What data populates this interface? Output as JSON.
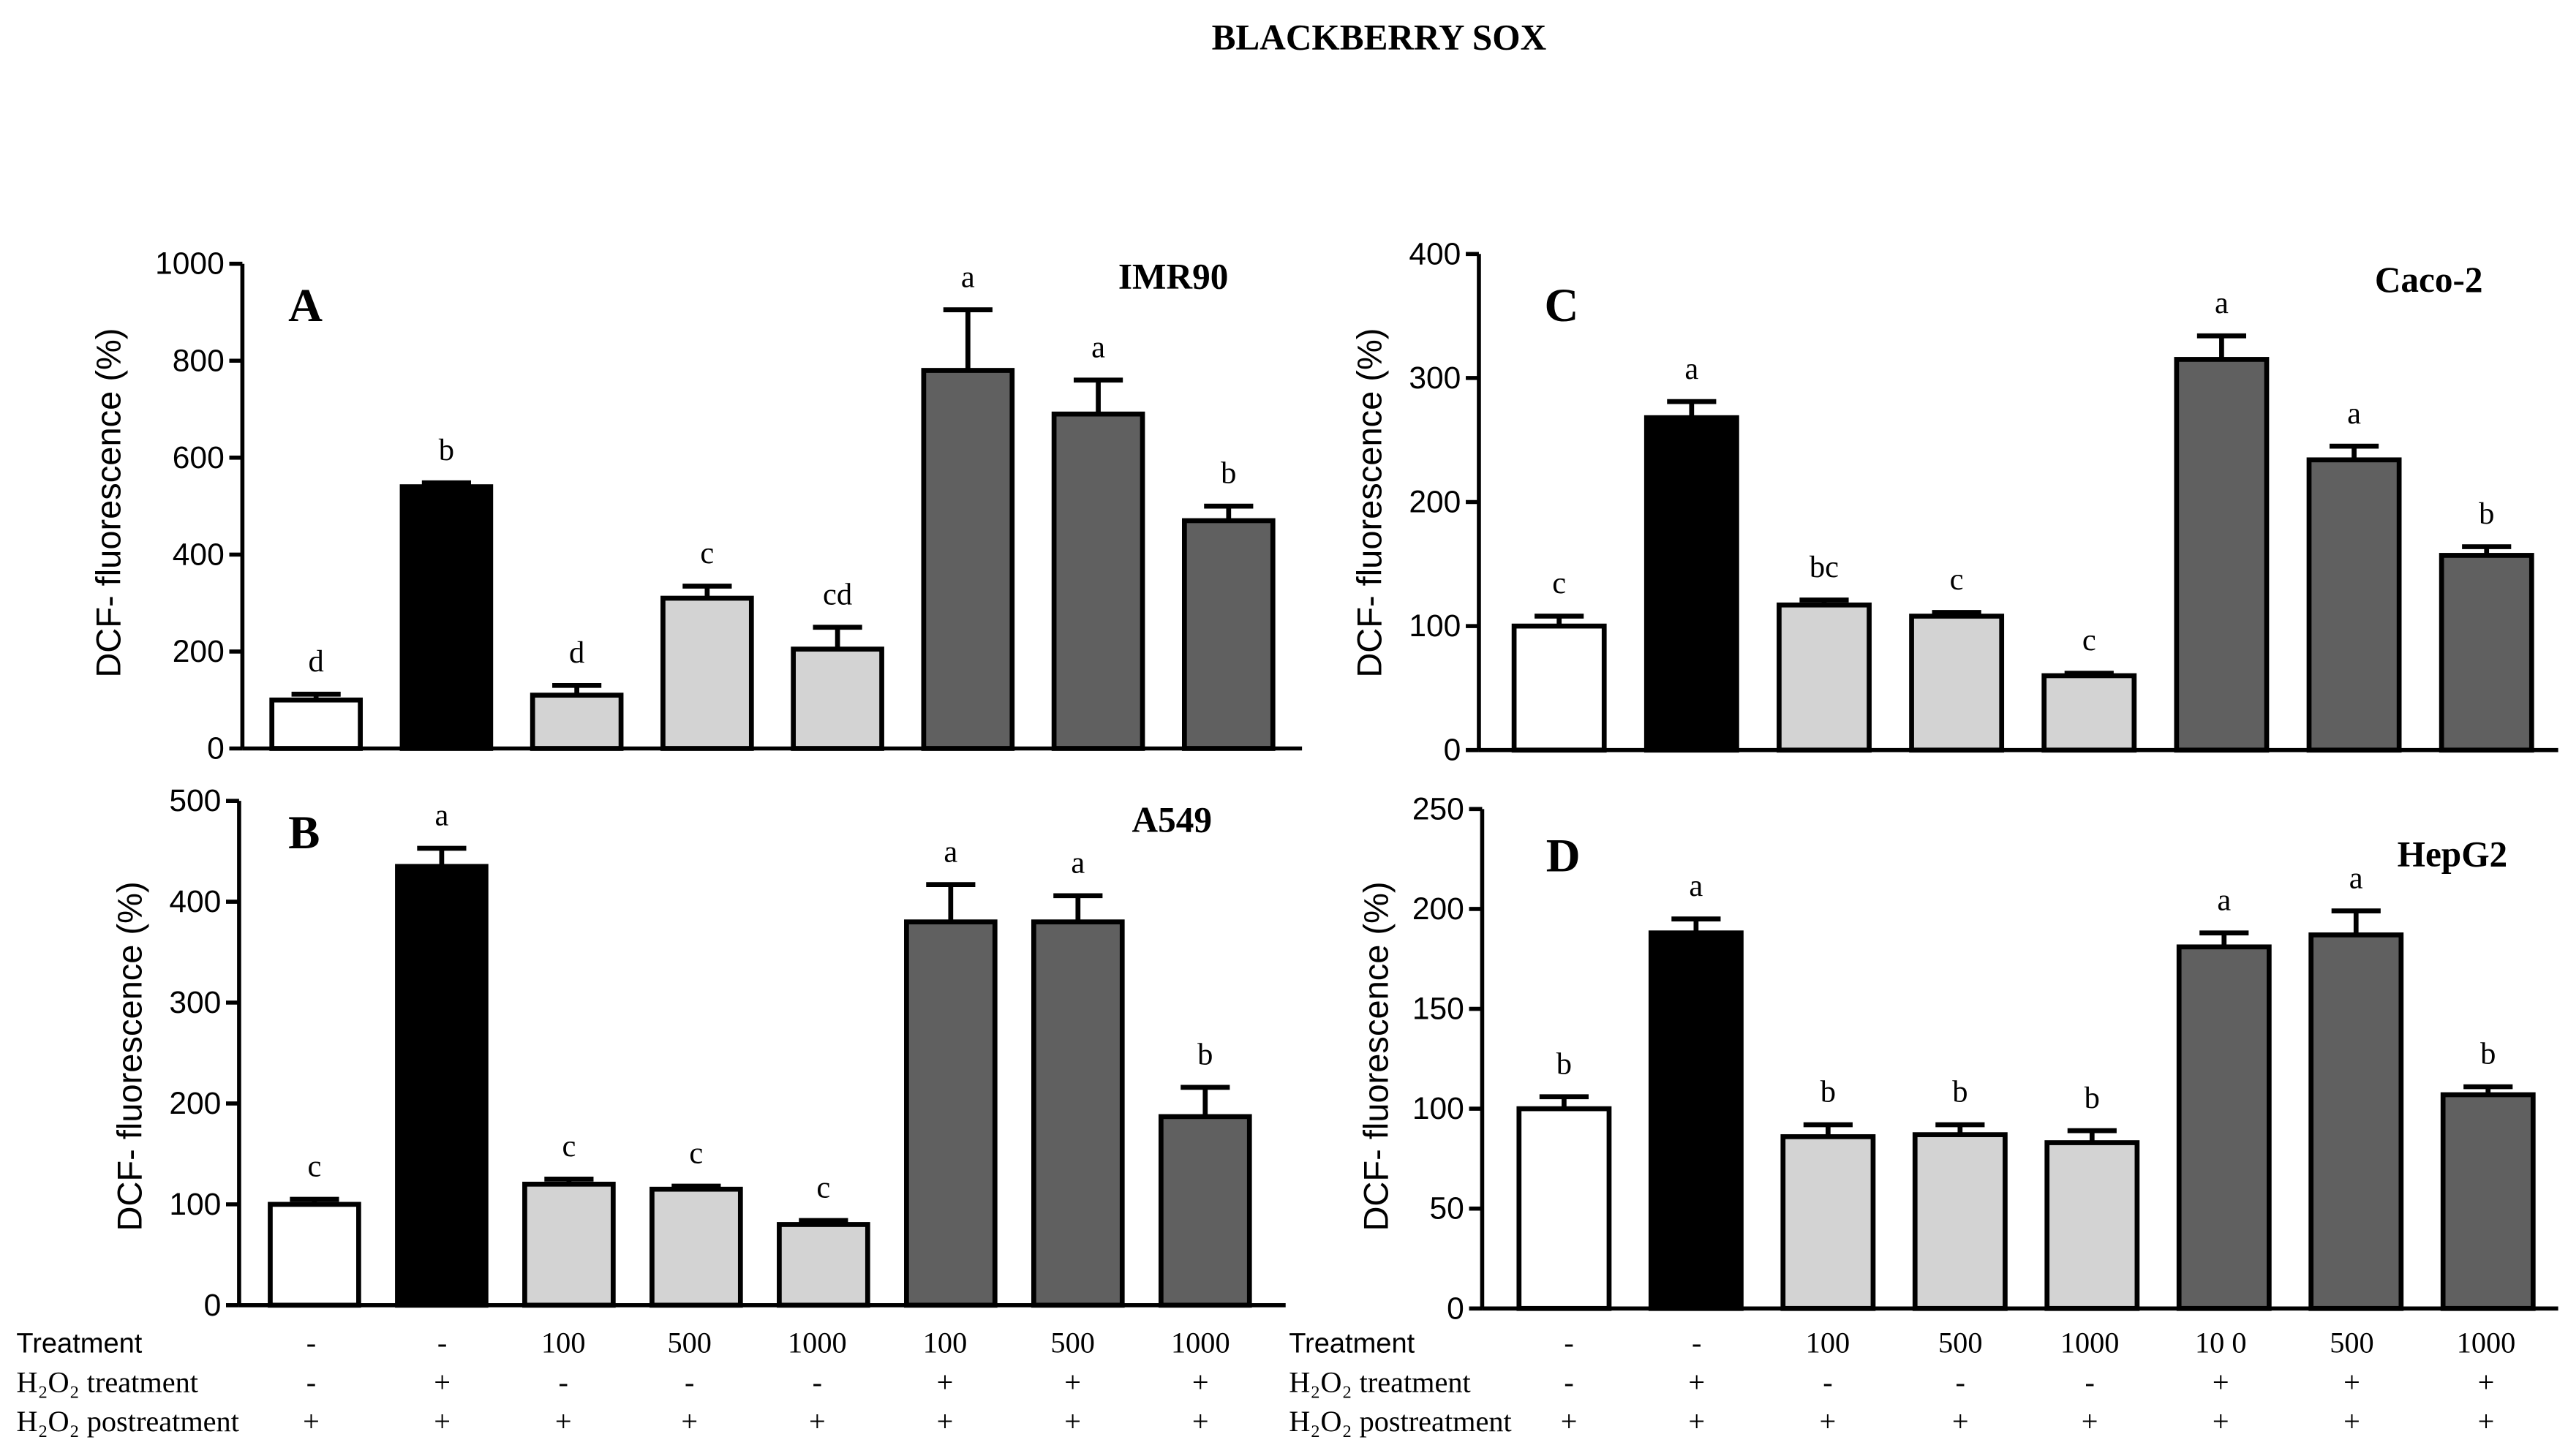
{
  "title": "BLACKBERRY SOX",
  "chart_data": [
    {
      "type": "bar",
      "panel_letter": "A",
      "cell_line": "IMR90",
      "ylabel": "DCF- fluorescence (%)",
      "ylim": [
        0,
        1000
      ],
      "yticks": [
        0,
        200,
        400,
        600,
        800,
        1000
      ],
      "values": [
        100,
        540,
        110,
        310,
        205,
        780,
        690,
        470
      ],
      "errors": [
        12,
        8,
        20,
        25,
        45,
        125,
        70,
        30
      ],
      "significance": [
        "d",
        "b",
        "d",
        "c",
        "cd",
        "a",
        "a",
        "b"
      ],
      "fills": [
        "#ffffff",
        "#000000",
        "#d3d3d3",
        "#d3d3d3",
        "#d3d3d3",
        "#606060",
        "#606060",
        "#606060"
      ]
    },
    {
      "type": "bar",
      "panel_letter": "B",
      "cell_line": "A549",
      "ylabel": "DCF- fluorescence (%)",
      "ylim": [
        0,
        500
      ],
      "yticks": [
        0,
        100,
        200,
        300,
        400,
        500
      ],
      "values": [
        100,
        435,
        120,
        115,
        80,
        380,
        380,
        187
      ],
      "errors": [
        5,
        18,
        5,
        3,
        4,
        37,
        26,
        29
      ],
      "significance": [
        "c",
        "a",
        "c",
        "c",
        "c",
        "a",
        "a",
        "b"
      ],
      "fills": [
        "#ffffff",
        "#000000",
        "#d3d3d3",
        "#d3d3d3",
        "#d3d3d3",
        "#606060",
        "#606060",
        "#606060"
      ]
    },
    {
      "type": "bar",
      "panel_letter": "C",
      "cell_line": "Caco-2",
      "ylabel": "DCF- fluorescence (%)",
      "ylim": [
        0,
        400
      ],
      "yticks": [
        0,
        100,
        200,
        300,
        400
      ],
      "values": [
        100,
        268,
        117,
        108,
        60,
        315,
        234,
        157
      ],
      "errors": [
        8,
        13,
        4,
        3,
        2,
        19,
        11,
        7
      ],
      "significance": [
        "c",
        "a",
        "bc",
        "c",
        "c",
        "a",
        "a",
        "b"
      ],
      "fills": [
        "#ffffff",
        "#000000",
        "#d3d3d3",
        "#d3d3d3",
        "#d3d3d3",
        "#606060",
        "#606060",
        "#606060"
      ]
    },
    {
      "type": "bar",
      "panel_letter": "D",
      "cell_line": "HepG2",
      "ylabel": "DCF- fluorescence (%)",
      "ylim": [
        0,
        250
      ],
      "yticks": [
        0,
        50,
        100,
        150,
        200,
        250
      ],
      "values": [
        100,
        188,
        86,
        87,
        83,
        181,
        187,
        107
      ],
      "errors": [
        6,
        7,
        6,
        5,
        6,
        7,
        12,
        4
      ],
      "significance": [
        "b",
        "a",
        "b",
        "b",
        "b",
        "a",
        "a",
        "b"
      ],
      "fills": [
        "#ffffff",
        "#000000",
        "#d3d3d3",
        "#d3d3d3",
        "#d3d3d3",
        "#606060",
        "#606060",
        "#606060"
      ]
    }
  ],
  "treatment_table": [
    {
      "rows": [
        {
          "label": "Treatment",
          "values": [
            "-",
            "-",
            "100",
            "500",
            "1000",
            "100",
            "500",
            "1000"
          ]
        },
        {
          "label": "H₂O₂ treatment",
          "values": [
            "-",
            "+",
            "-",
            "-",
            "-",
            "+",
            "+",
            "+"
          ]
        },
        {
          "label": "H₂O₂ postreatment",
          "values": [
            "+",
            "+",
            "+",
            "+",
            "+",
            "+",
            "+",
            "+"
          ]
        }
      ]
    },
    {
      "rows": [
        {
          "label": "Treatment",
          "values": [
            "-",
            "-",
            "100",
            "500",
            "1000",
            "10 0",
            "500",
            "1000"
          ]
        },
        {
          "label": "H₂O₂ treatment",
          "values": [
            "-",
            "+",
            "-",
            "-",
            "-",
            "+",
            "+",
            "+"
          ]
        },
        {
          "label": "H₂O₂ postreatment",
          "values": [
            "+",
            "+",
            "+",
            "+",
            "+",
            "+",
            "+",
            "+"
          ]
        }
      ]
    }
  ]
}
